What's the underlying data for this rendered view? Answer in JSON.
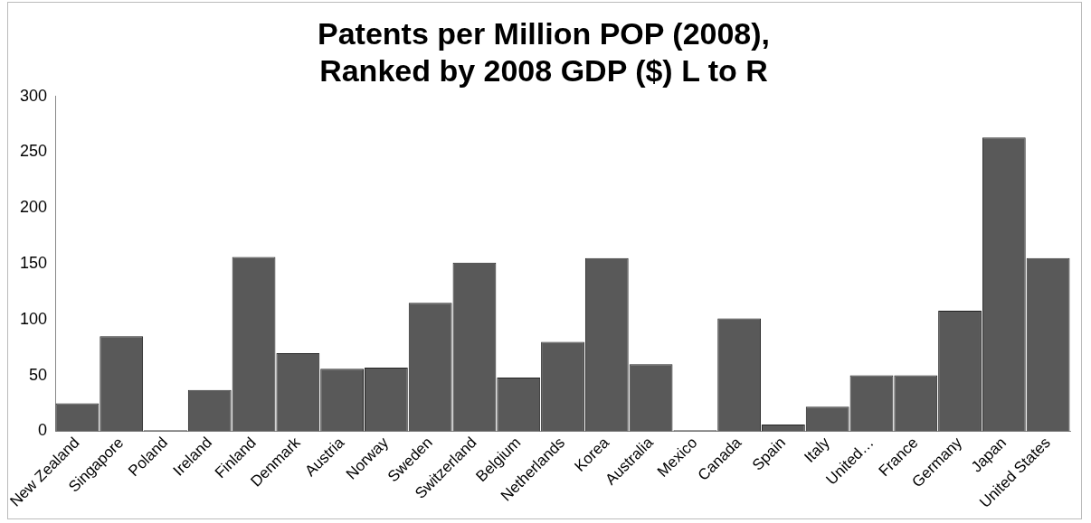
{
  "chart_data": {
    "type": "bar",
    "title": "Patents per Million POP (2008),\nRanked by 2008 GDP ($) L to R",
    "categories": [
      "New Zealand",
      "Singapore",
      "Poland",
      "Ireland",
      "Finland",
      "Denmark",
      "Austria",
      "Norway",
      "Sweden",
      "Switzerland",
      "Belgium",
      "Netherlands",
      "Korea",
      "Australia",
      "Mexico",
      "Canada",
      "Spain",
      "Italy",
      "United…",
      "France",
      "Germany",
      "Japan",
      "United States"
    ],
    "values": [
      25,
      85,
      1,
      37,
      156,
      70,
      56,
      57,
      115,
      151,
      48,
      80,
      155,
      60,
      1,
      101,
      6,
      22,
      50,
      50,
      108,
      263,
      155
    ],
    "color": "#595959",
    "ylim": [
      0,
      300
    ],
    "yticks": [
      0,
      50,
      100,
      150,
      200,
      250,
      300
    ],
    "grid": false,
    "legend": false
  }
}
